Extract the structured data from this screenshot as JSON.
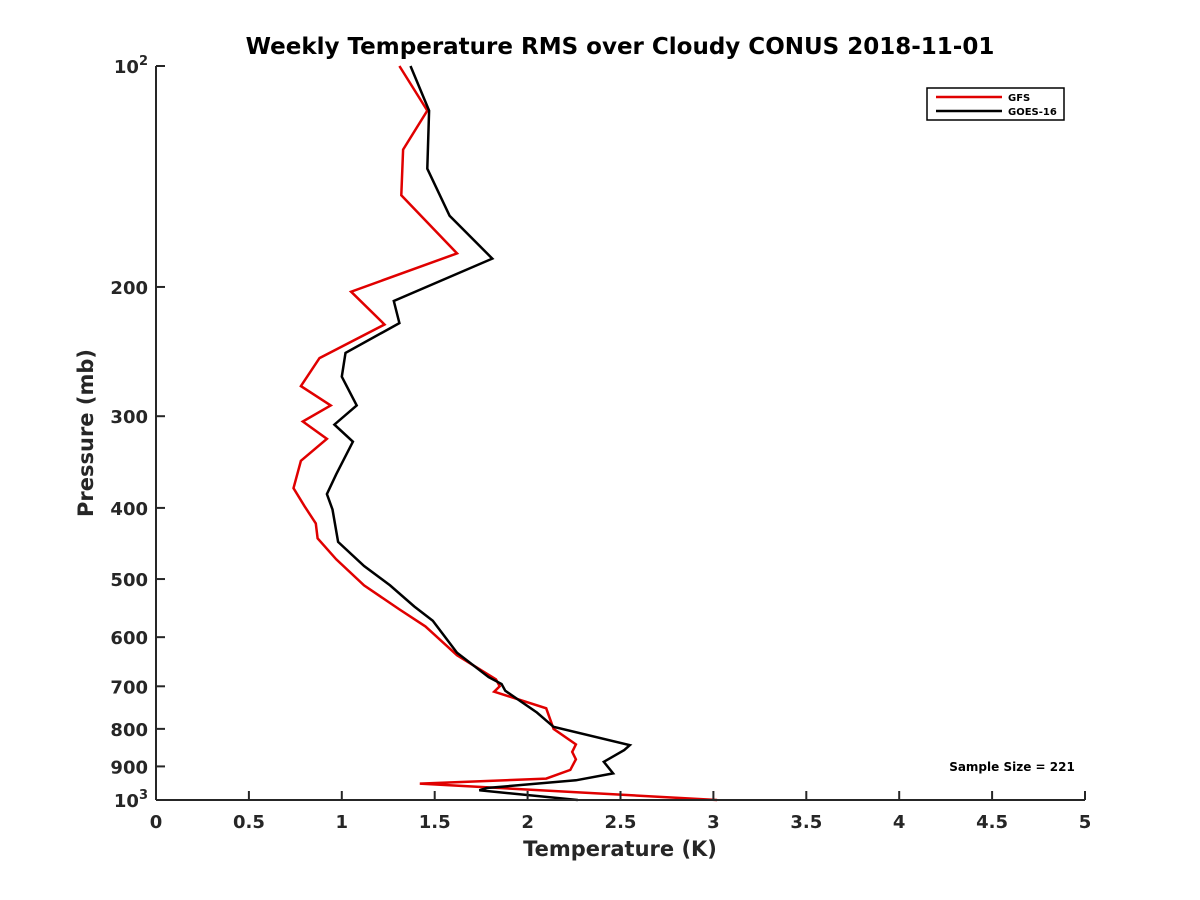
{
  "chart_data": {
    "type": "line",
    "title": "Weekly Temperature RMS over Cloudy CONUS 2018-11-01",
    "xlabel": "Temperature (K)",
    "ylabel": "Pressure (mb)",
    "xlim": [
      0,
      5
    ],
    "ylim": [
      100,
      1000
    ],
    "y_scale": "log",
    "y_reversed": true,
    "x_ticks": [
      0,
      0.5,
      1,
      1.5,
      2,
      2.5,
      3,
      3.5,
      4,
      4.5,
      5
    ],
    "x_tick_labels": [
      "0",
      "0.5",
      "1",
      "1.5",
      "2",
      "2.5",
      "3",
      "3.5",
      "4",
      "4.5",
      "5"
    ],
    "y_ticks": [
      100,
      200,
      300,
      400,
      500,
      600,
      700,
      800,
      900,
      1000
    ],
    "y_tick_labels": [
      {
        "base": "10",
        "sup": "2"
      },
      {
        "base": "200",
        "sup": ""
      },
      {
        "base": "300",
        "sup": ""
      },
      {
        "base": "400",
        "sup": ""
      },
      {
        "base": "500",
        "sup": ""
      },
      {
        "base": "600",
        "sup": ""
      },
      {
        "base": "700",
        "sup": ""
      },
      {
        "base": "800",
        "sup": ""
      },
      {
        "base": "900",
        "sup": ""
      },
      {
        "base": "10",
        "sup": "3"
      }
    ],
    "grid": false,
    "legend_position": "top-right",
    "series": [
      {
        "name": "GFS",
        "color": "#e00000",
        "points": [
          [
            1.31,
            100
          ],
          [
            1.46,
            115
          ],
          [
            1.33,
            130
          ],
          [
            1.32,
            150
          ],
          [
            1.62,
            180
          ],
          [
            1.05,
            203
          ],
          [
            1.23,
            225
          ],
          [
            0.88,
            250
          ],
          [
            0.78,
            273
          ],
          [
            0.94,
            290
          ],
          [
            0.79,
            305
          ],
          [
            0.92,
            322
          ],
          [
            0.78,
            345
          ],
          [
            0.74,
            376
          ],
          [
            0.8,
            398
          ],
          [
            0.86,
            420
          ],
          [
            0.87,
            440
          ],
          [
            0.97,
            470
          ],
          [
            1.12,
            510
          ],
          [
            1.31,
            550
          ],
          [
            1.45,
            580
          ],
          [
            1.62,
            635
          ],
          [
            1.83,
            685
          ],
          [
            1.85,
            700
          ],
          [
            1.82,
            712
          ],
          [
            2.1,
            750
          ],
          [
            2.14,
            800
          ],
          [
            2.26,
            840
          ],
          [
            2.24,
            860
          ],
          [
            2.26,
            880
          ],
          [
            2.23,
            910
          ],
          [
            2.1,
            935
          ],
          [
            1.42,
            950
          ],
          [
            3.02,
            1000
          ]
        ]
      },
      {
        "name": "GOES-16",
        "color": "#000000",
        "points": [
          [
            1.37,
            100
          ],
          [
            1.47,
            115
          ],
          [
            1.46,
            138
          ],
          [
            1.58,
            160
          ],
          [
            1.81,
            183
          ],
          [
            1.28,
            209
          ],
          [
            1.31,
            224
          ],
          [
            1.02,
            246
          ],
          [
            1.0,
            265
          ],
          [
            1.08,
            290
          ],
          [
            0.96,
            308
          ],
          [
            1.06,
            325
          ],
          [
            0.97,
            360
          ],
          [
            0.92,
            383
          ],
          [
            0.95,
            402
          ],
          [
            0.98,
            445
          ],
          [
            1.12,
            480
          ],
          [
            1.26,
            510
          ],
          [
            1.39,
            545
          ],
          [
            1.49,
            570
          ],
          [
            1.62,
            630
          ],
          [
            1.79,
            680
          ],
          [
            1.86,
            695
          ],
          [
            1.88,
            710
          ],
          [
            2.05,
            760
          ],
          [
            2.14,
            795
          ],
          [
            2.55,
            842
          ],
          [
            2.52,
            855
          ],
          [
            2.41,
            887
          ],
          [
            2.46,
            920
          ],
          [
            2.26,
            940
          ],
          [
            1.78,
            963
          ],
          [
            1.74,
            970
          ],
          [
            2.27,
            1000
          ]
        ]
      }
    ],
    "annotations": [
      {
        "text": "Sample Size = 221",
        "position": "bottom-right"
      }
    ]
  }
}
